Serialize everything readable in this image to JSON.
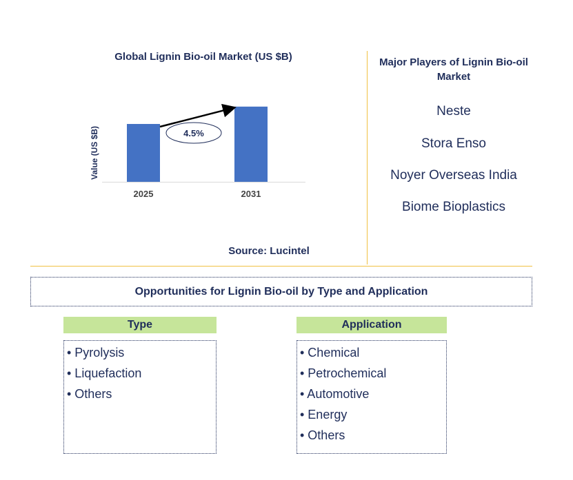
{
  "chart_data": {
    "type": "bar",
    "title": "Global Lignin Bio-oil Market (US $B)",
    "ylabel": "Value (US $B)",
    "xlabel": "",
    "categories": [
      "2025",
      "2031"
    ],
    "values": [
      1.0,
      1.3
    ],
    "ylim": [
      0,
      1.5
    ],
    "annotation": "4.5%",
    "bar_color": "#4472c4",
    "grid": false
  },
  "source": "Source: Lucintel",
  "players": {
    "title": "Major Players of Lignin Bio-oil Market",
    "items": [
      "Neste",
      "Stora Enso",
      "Noyer Overseas India",
      "Biome Bioplastics"
    ]
  },
  "opportunities": {
    "title": "Opportunities for Lignin Bio-oil by Type and Application",
    "type": {
      "header": "Type",
      "items": [
        "• Pyrolysis",
        "• Liquefaction",
        "• Others"
      ]
    },
    "application": {
      "header": "Application",
      "items": [
        "• Chemical",
        "• Petrochemical",
        "• Automotive",
        "• Energy",
        "• Others"
      ]
    }
  },
  "colors": {
    "text": "#1f2d5a",
    "accent_line": "#f0c040",
    "header_fill": "#c6e59a"
  }
}
